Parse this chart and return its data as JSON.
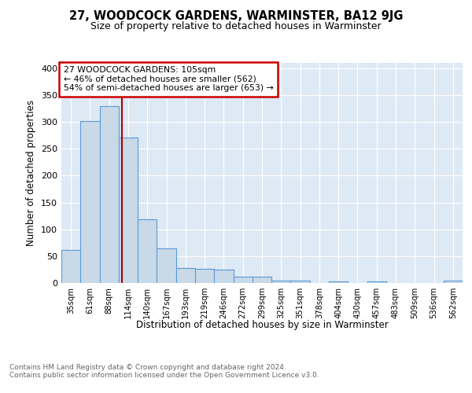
{
  "title": "27, WOODCOCK GARDENS, WARMINSTER, BA12 9JG",
  "subtitle": "Size of property relative to detached houses in Warminster",
  "xlabel": "Distribution of detached houses by size in Warminster",
  "ylabel": "Number of detached properties",
  "bin_labels": [
    "35sqm",
    "61sqm",
    "88sqm",
    "114sqm",
    "140sqm",
    "167sqm",
    "193sqm",
    "219sqm",
    "246sqm",
    "272sqm",
    "299sqm",
    "325sqm",
    "351sqm",
    "378sqm",
    "404sqm",
    "430sqm",
    "457sqm",
    "483sqm",
    "509sqm",
    "536sqm",
    "562sqm"
  ],
  "bar_values": [
    62,
    301,
    330,
    271,
    119,
    64,
    28,
    26,
    25,
    12,
    12,
    5,
    4,
    0,
    3,
    0,
    3,
    0,
    0,
    0,
    4
  ],
  "bar_color": "#c9d9e8",
  "bar_edge_color": "#5b9bd5",
  "red_line_x": 2.67,
  "annotation_text": "27 WOODCOCK GARDENS: 105sqm\n← 46% of detached houses are smaller (562)\n54% of semi-detached houses are larger (653) →",
  "annotation_box_color": "#ffffff",
  "annotation_box_edge": "#cc0000",
  "footer_text": "Contains HM Land Registry data © Crown copyright and database right 2024.\nContains public sector information licensed under the Open Government Licence v3.0.",
  "background_color": "#dde9f4",
  "ylim": [
    0,
    410
  ],
  "yticks": [
    0,
    50,
    100,
    150,
    200,
    250,
    300,
    350,
    400
  ]
}
